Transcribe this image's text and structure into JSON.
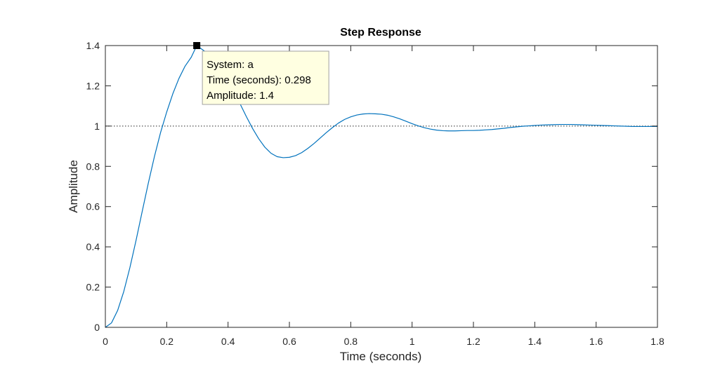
{
  "chart_data": {
    "type": "line",
    "title": "Step Response",
    "xlabel": "Time (seconds)",
    "ylabel": "Amplitude",
    "xlim": [
      0,
      1.8
    ],
    "ylim": [
      0,
      1.4
    ],
    "xticks": [
      0,
      0.2,
      0.4,
      0.6,
      0.8,
      1,
      1.2,
      1.4,
      1.6,
      1.8
    ],
    "xtick_labels": [
      "0",
      "0.2",
      "0.4",
      "0.6",
      "0.8",
      "1",
      "1.2",
      "1.4",
      "1.6",
      "1.8"
    ],
    "yticks": [
      0,
      0.2,
      0.4,
      0.6,
      0.8,
      1,
      1.2,
      1.4
    ],
    "ytick_labels": [
      "0",
      "0.2",
      "0.4",
      "0.6",
      "0.8",
      "1",
      "1.2",
      "1.4"
    ],
    "grid": false,
    "reference_line": {
      "y": 1,
      "style": "dotted"
    },
    "series": [
      {
        "color": "#0072BD",
        "x": [
          0,
          0.02,
          0.04,
          0.06,
          0.08,
          0.1,
          0.12,
          0.14,
          0.16,
          0.18,
          0.2,
          0.22,
          0.24,
          0.26,
          0.28,
          0.298,
          0.32,
          0.34,
          0.36,
          0.38,
          0.4,
          0.42,
          0.44,
          0.46,
          0.48,
          0.5,
          0.52,
          0.54,
          0.56,
          0.58,
          0.6,
          0.62,
          0.64,
          0.66,
          0.68,
          0.7,
          0.72,
          0.74,
          0.76,
          0.78,
          0.8,
          0.82,
          0.84,
          0.86,
          0.88,
          0.9,
          0.92,
          0.94,
          0.96,
          0.98,
          1.0,
          1.02,
          1.04,
          1.06,
          1.08,
          1.1,
          1.12,
          1.14,
          1.16,
          1.18,
          1.2,
          1.22,
          1.24,
          1.26,
          1.28,
          1.3,
          1.32,
          1.34,
          1.36,
          1.38,
          1.4,
          1.42,
          1.44,
          1.46,
          1.48,
          1.5,
          1.52,
          1.54,
          1.56,
          1.58,
          1.6,
          1.62,
          1.64,
          1.66,
          1.68,
          1.7,
          1.72,
          1.74,
          1.76,
          1.78,
          1.8
        ],
        "y": [
          0,
          0.022,
          0.084,
          0.178,
          0.297,
          0.432,
          0.575,
          0.716,
          0.849,
          0.968,
          1.07,
          1.161,
          1.237,
          1.298,
          1.342,
          1.4,
          1.376,
          1.354,
          1.324,
          1.278,
          1.228,
          1.17,
          1.108,
          1.046,
          0.988,
          0.937,
          0.895,
          0.865,
          0.848,
          0.843,
          0.845,
          0.853,
          0.868,
          0.889,
          0.913,
          0.94,
          0.967,
          0.992,
          1.015,
          1.033,
          1.046,
          1.055,
          1.06,
          1.062,
          1.061,
          1.059,
          1.054,
          1.046,
          1.036,
          1.024,
          1.012,
          1.001,
          0.992,
          0.985,
          0.98,
          0.977,
          0.976,
          0.976,
          0.977,
          0.978,
          0.978,
          0.979,
          0.981,
          0.983,
          0.986,
          0.989,
          0.993,
          0.996,
          0.999,
          1.001,
          1.003,
          1.005,
          1.006,
          1.007,
          1.008,
          1.008,
          1.008,
          1.007,
          1.006,
          1.005,
          1.004,
          1.003,
          1.002,
          1.001,
          1.0,
          0.999,
          0.998,
          0.998,
          0.998,
          0.998,
          0.998
        ]
      }
    ],
    "datatip": {
      "x": 0.298,
      "y": 1.4,
      "lines": [
        "System: a",
        "Time (seconds): 0.298",
        "Amplitude: 1.4"
      ]
    },
    "colors": {
      "line": "#0072BD",
      "axes": "#262626",
      "tip_background": "#FFFFE1",
      "tip_border": "#A0A0A0",
      "marker": "#000000"
    }
  }
}
